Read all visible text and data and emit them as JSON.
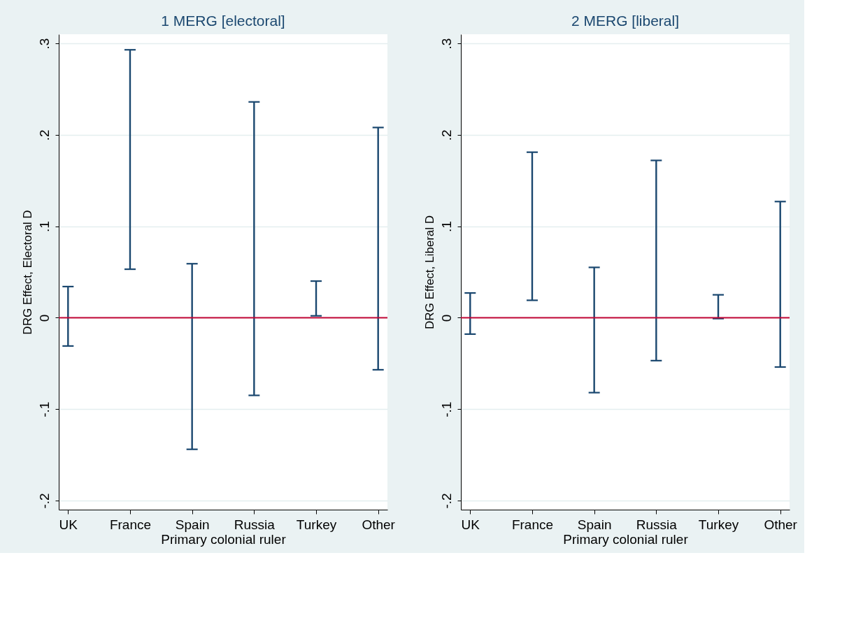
{
  "chart_data": [
    {
      "type": "bar",
      "title": "1 MERG [electoral]",
      "xlabel": "Primary colonial ruler",
      "ylabel": "DRG Effect, Electoral D",
      "categories": [
        "UK",
        "France",
        "Spain",
        "Russia",
        "Turkey",
        "Other"
      ],
      "base": [
        -0.031,
        0.053,
        -0.144,
        -0.085,
        0.002,
        -0.057
      ],
      "values": [
        0.065,
        0.24,
        0.203,
        0.321,
        0.038,
        0.265
      ],
      "color": "#1a476f",
      "ylim": [
        -0.21,
        0.31
      ],
      "yticks": [
        {
          "value": -0.2,
          "label": "-.2"
        },
        {
          "value": -0.1,
          "label": "-.1"
        },
        0,
        {
          "value": 0.1,
          "label": ".1"
        },
        {
          "value": 0.2,
          "label": ".2"
        },
        {
          "value": 0.3,
          "label": ".3"
        }
      ],
      "grid": "y",
      "ref_lines": [
        {
          "axis": "y",
          "value": 0,
          "color": "#c10534"
        }
      ]
    },
    {
      "type": "bar",
      "title": "2 MERG [liberal]",
      "xlabel": "Primary colonial ruler",
      "ylabel": "DRG Effect, Liberal D",
      "categories": [
        "UK",
        "France",
        "Spain",
        "Russia",
        "Turkey",
        "Other"
      ],
      "base": [
        -0.018,
        0.019,
        -0.082,
        -0.047,
        -0.001,
        -0.054
      ],
      "values": [
        0.045,
        0.162,
        0.137,
        0.219,
        0.026,
        0.181
      ],
      "color": "#1a476f",
      "ylim": [
        -0.21,
        0.31
      ],
      "yticks": [
        {
          "value": -0.2,
          "label": "-.2"
        },
        {
          "value": -0.1,
          "label": "-.1"
        },
        0,
        {
          "value": 0.1,
          "label": ".1"
        },
        {
          "value": 0.2,
          "label": ".2"
        },
        {
          "value": 0.3,
          "label": ".3"
        }
      ],
      "grid": "y",
      "ref_lines": [
        {
          "axis": "y",
          "value": 0,
          "color": "#c10534"
        }
      ]
    }
  ]
}
